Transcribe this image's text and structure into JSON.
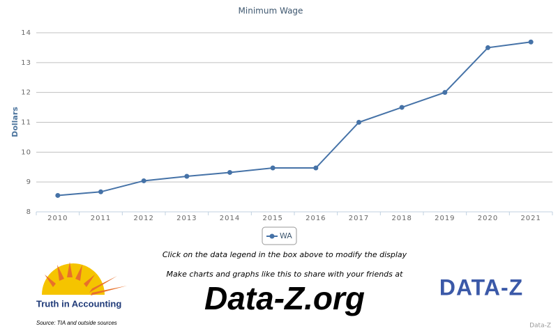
{
  "chart_data": {
    "type": "line",
    "title": "Minimum Wage",
    "y_label": "Dollars",
    "categories": [
      "2010",
      "2011",
      "2012",
      "2013",
      "2014",
      "2015",
      "2016",
      "2017",
      "2018",
      "2019",
      "2020",
      "2021"
    ],
    "series": [
      {
        "name": "WA",
        "color": "#4572a7",
        "values": [
          8.55,
          8.67,
          9.04,
          9.19,
          9.32,
          9.47,
          9.47,
          11.0,
          11.5,
          12.0,
          13.5,
          13.69
        ]
      }
    ],
    "ylim": [
      8,
      14
    ],
    "yticks": [
      8,
      9,
      10,
      11,
      12,
      13,
      14
    ],
    "grid": true,
    "legend": "bottom"
  },
  "page": {
    "legend_hint": "Click on the data legend in the box above to modify the display",
    "promo": "Make charts and graphs like this to share with your friends at",
    "site": "Data-Z.org",
    "tia": "Truth in Accounting",
    "source": "Source: TIA and outside sources",
    "logo": "DATA-Z",
    "credit": "Data-Z"
  }
}
